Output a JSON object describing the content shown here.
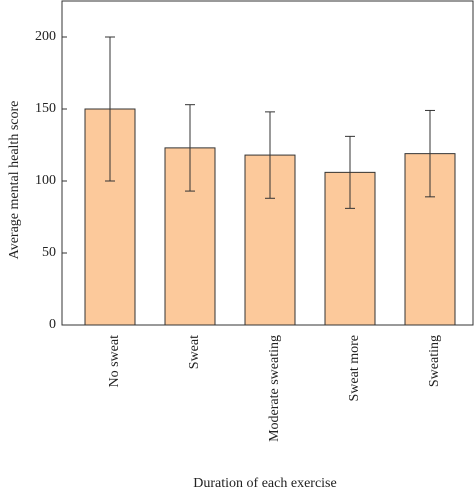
{
  "chart_data": {
    "type": "bar",
    "x_label": "Duration of each exercise",
    "y_label": "Average mental health score",
    "categories": [
      "No sweat",
      "Sweat",
      "Moderate sweating",
      "Sweat more",
      "Sweating"
    ],
    "values": [
      150,
      123,
      118,
      106,
      119
    ],
    "errors": [
      50,
      30,
      30,
      25,
      30
    ],
    "color": "#fcc99b",
    "ylim": [
      0,
      225
    ],
    "yticks": [
      0,
      50,
      100,
      150,
      200
    ]
  }
}
